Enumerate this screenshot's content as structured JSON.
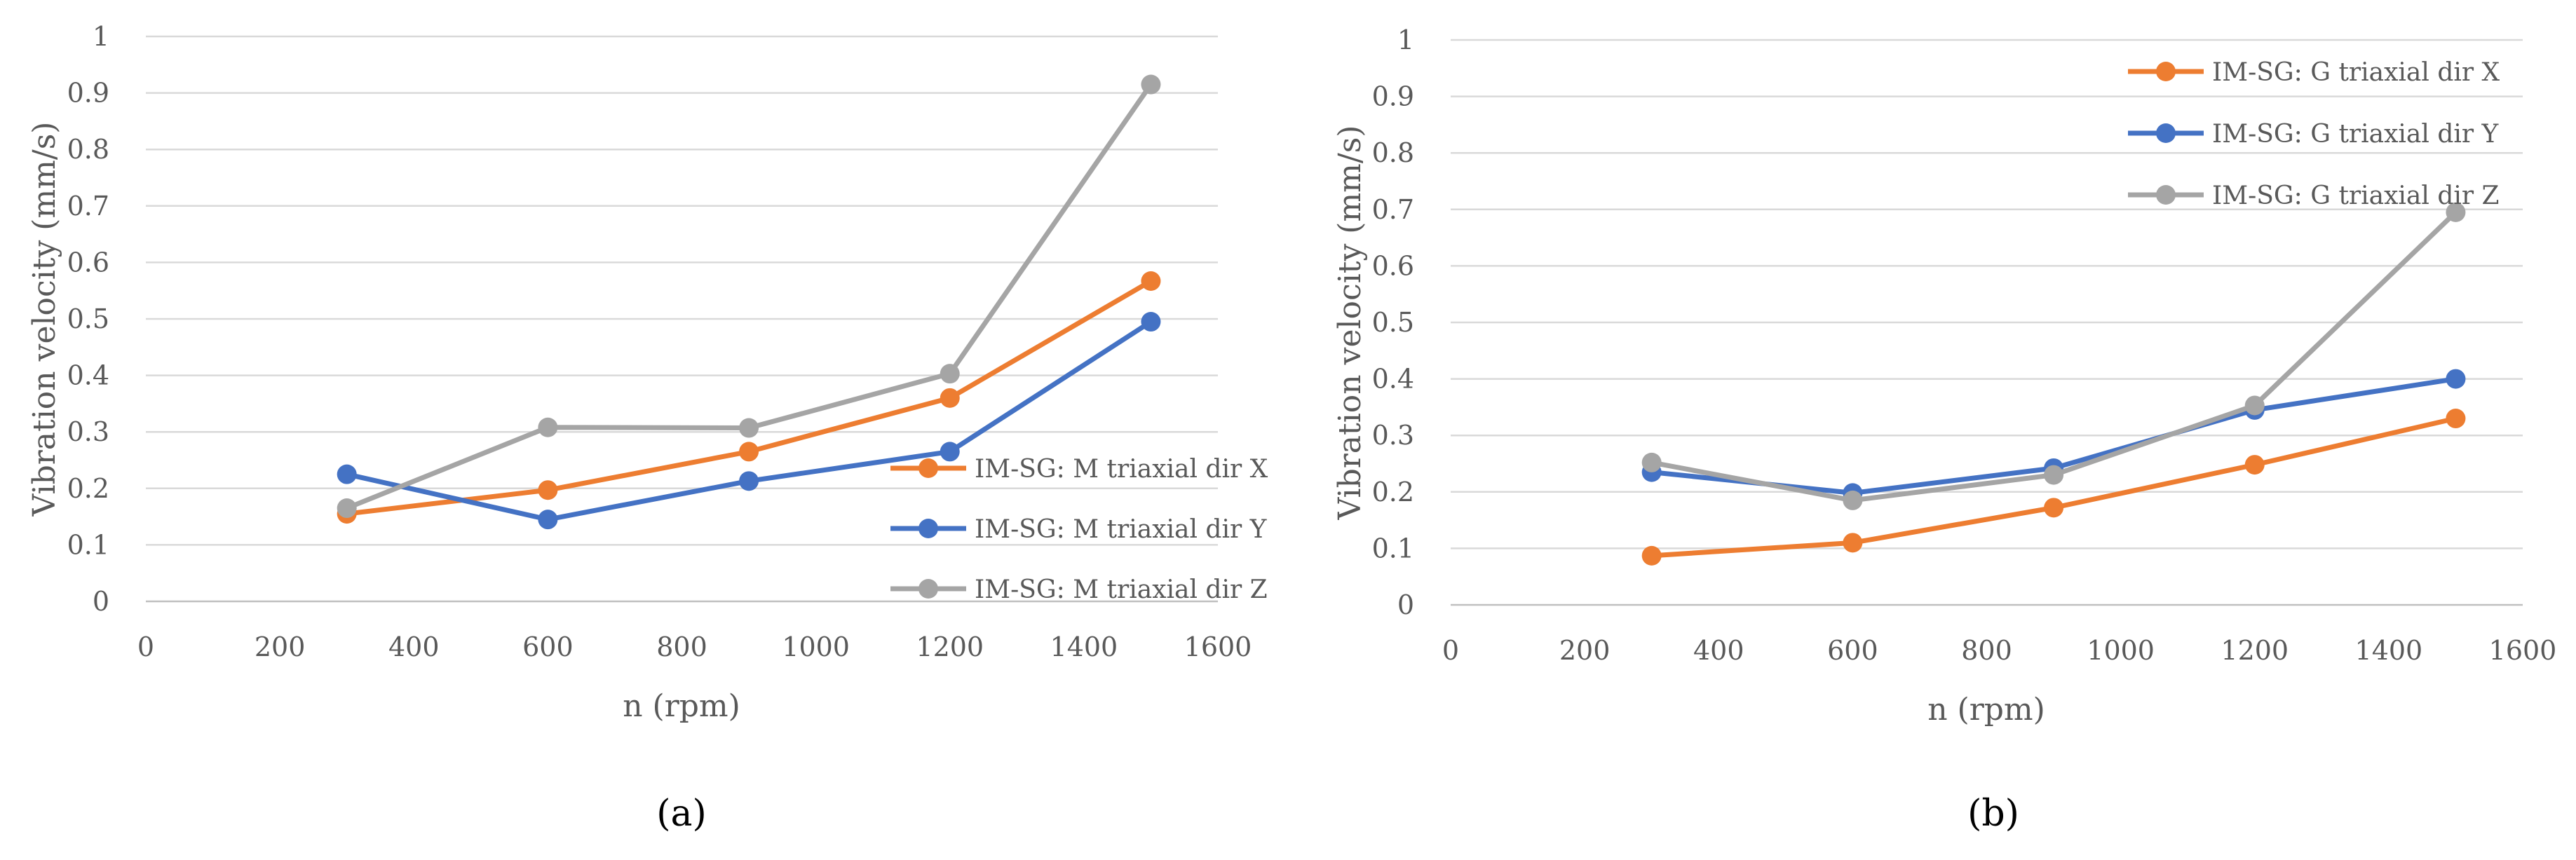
{
  "chart_data": [
    {
      "type": "line",
      "caption": "(a)",
      "xlabel": "n (rpm)",
      "ylabel": "Vibration velocity (mm/s)",
      "xlim": [
        0,
        1600
      ],
      "ylim": [
        0,
        1
      ],
      "xticks": [
        "0",
        "200",
        "400",
        "600",
        "800",
        "1000",
        "1200",
        "1400",
        "1600"
      ],
      "yticks": [
        "0",
        "0.1",
        "0.2",
        "0.3",
        "0.4",
        "0.5",
        "0.6",
        "0.7",
        "0.8",
        "0.9",
        "1"
      ],
      "grid": true,
      "legend_position": "bottom-right",
      "x": [
        300,
        600,
        900,
        1200,
        1500
      ],
      "series": [
        {
          "name": "IM-SG: M triaxial dir X",
          "color": "#ED7D31",
          "values": [
            0.155,
            0.197,
            0.265,
            0.36,
            0.567
          ]
        },
        {
          "name": "IM-SG: M triaxial dir Y",
          "color": "#4472C4",
          "values": [
            0.225,
            0.145,
            0.213,
            0.265,
            0.495
          ]
        },
        {
          "name": "IM-SG: M triaxial dir Z",
          "color": "#A5A5A5",
          "values": [
            0.165,
            0.308,
            0.307,
            0.403,
            0.915
          ]
        }
      ]
    },
    {
      "type": "line",
      "caption": "(b)",
      "xlabel": "n (rpm)",
      "ylabel": "Vibration velocity (mm/s)",
      "xlim": [
        0,
        1600
      ],
      "ylim": [
        0,
        1
      ],
      "xticks": [
        "0",
        "200",
        "400",
        "600",
        "800",
        "1000",
        "1200",
        "1400",
        "1600"
      ],
      "yticks": [
        "0",
        "0.1",
        "0.2",
        "0.3",
        "0.4",
        "0.5",
        "0.6",
        "0.7",
        "0.8",
        "0.9",
        "1"
      ],
      "grid": true,
      "legend_position": "top-right",
      "x": [
        300,
        600,
        900,
        1200,
        1500
      ],
      "series": [
        {
          "name": "IM-SG: G triaxial dir X",
          "color": "#ED7D31",
          "values": [
            0.087,
            0.11,
            0.172,
            0.248,
            0.33
          ]
        },
        {
          "name": "IM-SG: G triaxial dir Y",
          "color": "#4472C4",
          "values": [
            0.235,
            0.198,
            0.242,
            0.345,
            0.4
          ]
        },
        {
          "name": "IM-SG: G triaxial dir Z",
          "color": "#A5A5A5",
          "values": [
            0.252,
            0.185,
            0.23,
            0.353,
            0.695
          ]
        }
      ]
    }
  ]
}
